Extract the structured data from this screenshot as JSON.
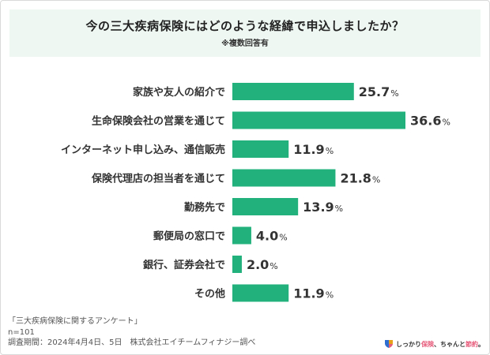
{
  "header": {
    "title": "今の三大疾病保険にはどのような経緯で申込しましたか？",
    "subtitle": "※複数回答有"
  },
  "colors": {
    "bar": "#22b07d",
    "title_bg": "#eef7f2",
    "text": "#333333"
  },
  "chart_data": {
    "type": "bar",
    "orientation": "horizontal",
    "categories": [
      "家族や友人の紹介で",
      "生命保険会社の営業を通じて",
      "インターネット申し込み、通信販売",
      "保険代理店の担当者を通じて",
      "勤務先で",
      "郵便局の窓口で",
      "銀行、証券会社で",
      "その他"
    ],
    "values": [
      25.7,
      36.6,
      11.9,
      21.8,
      13.9,
      4.0,
      2.0,
      11.9
    ],
    "value_labels": [
      "25.7",
      "36.6",
      "11.9",
      "21.8",
      "13.9",
      "4.0",
      "2.0",
      "11.9"
    ],
    "unit": "%",
    "xlim": [
      0,
      40
    ],
    "grid": false
  },
  "footer": {
    "survey_name": "「三大疾病保険に関するアンケート」",
    "sample": "n=101",
    "period": "調査期間：2024年4月4日、5日　株式会社エイチームフィナジー調べ"
  },
  "brand": {
    "logo_icon": "shield-logo-icon",
    "text_before": "しっかり",
    "text_accent1": "保険",
    "text_middle": "、ちゃんと",
    "text_accent2": "節約",
    "text_after": "。"
  }
}
